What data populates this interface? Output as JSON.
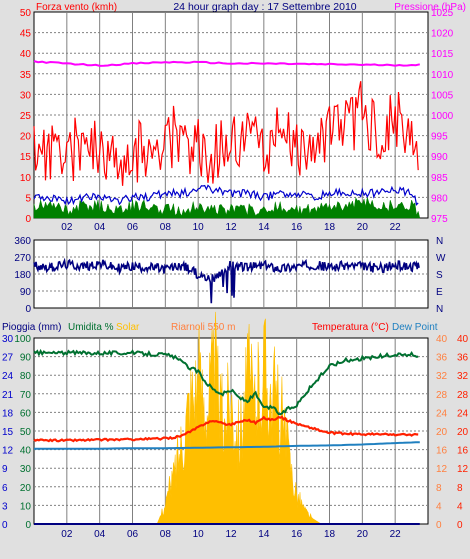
{
  "colors": {
    "background": "#e0e0e0",
    "plot_bg": "#ffffff",
    "wind": "#ff0000",
    "gust": "#0000cc",
    "wind_fill": "#008000",
    "pressure": "#ff00ff",
    "direction": "#000080",
    "rain": "#000080",
    "humidity": "#007030",
    "solar": "#ffbf00",
    "temperature": "#ff2000",
    "dewpoint": "#2080c0",
    "grid": "#808080"
  },
  "chart_data": [
    {
      "id": "wind-pressure",
      "type": "line",
      "title": "24 hour graph day : 17 Settembre 2010",
      "left_label": "Forza vento (kmh)",
      "right_label": "Pressione (hPa)",
      "ylim_left": [
        0,
        50
      ],
      "ylim_right": [
        975,
        1025
      ],
      "left_ticks": [
        "0",
        "5",
        "10",
        "15",
        "20",
        "25",
        "30",
        "35",
        "40",
        "45",
        "50"
      ],
      "right_ticks": [
        "975",
        "980",
        "985",
        "990",
        "995",
        "1000",
        "1005",
        "1010",
        "1015",
        "1020",
        "1025"
      ],
      "x_ticks": [
        "02",
        "04",
        "06",
        "08",
        "10",
        "12",
        "14",
        "16",
        "18",
        "20",
        "22"
      ],
      "xlim": [
        0,
        24
      ],
      "grid": true,
      "series": [
        {
          "key": "gust",
          "x": [
            0,
            1,
            2,
            3,
            4,
            5,
            6,
            7,
            8,
            9,
            10,
            11,
            12,
            13,
            14,
            15,
            16,
            17,
            18,
            19,
            20,
            21,
            22,
            23,
            23.5
          ],
          "values": [
            15,
            16,
            14,
            18,
            17,
            13,
            15,
            16,
            20,
            17,
            18,
            14,
            20,
            18,
            16,
            19,
            15,
            14,
            20,
            22,
            25,
            21,
            23,
            17,
            8
          ]
        },
        {
          "key": "wind_avg",
          "x": [
            0,
            1,
            2,
            3,
            4,
            5,
            6,
            7,
            8,
            9,
            10,
            11,
            12,
            13,
            14,
            15,
            16,
            17,
            18,
            19,
            20,
            21,
            22,
            23,
            23.5
          ],
          "values": [
            5,
            5,
            4,
            5,
            5,
            4,
            5,
            5,
            6,
            6,
            7,
            7,
            6,
            6,
            5,
            6,
            6,
            5,
            6,
            6,
            6,
            6,
            7,
            6,
            3
          ]
        },
        {
          "key": "wind_min",
          "x": [
            0,
            1,
            2,
            3,
            4,
            5,
            6,
            7,
            8,
            9,
            10,
            11,
            12,
            13,
            14,
            15,
            16,
            17,
            18,
            19,
            20,
            21,
            22,
            23,
            23.5
          ],
          "values": [
            3,
            3,
            2,
            3,
            3,
            2,
            3,
            3,
            2,
            2,
            3,
            2,
            2,
            2,
            2,
            3,
            2,
            2,
            3,
            3,
            4,
            3,
            3,
            3,
            1
          ]
        },
        {
          "key": "pressure",
          "x": [
            0,
            2,
            4,
            6,
            8,
            10,
            12,
            14,
            16,
            18,
            20,
            22,
            23.5
          ],
          "values": [
            1013,
            1012.5,
            1012,
            1012.5,
            1012.8,
            1012.8,
            1012.5,
            1012.5,
            1012.4,
            1012.3,
            1012.2,
            1012.1,
            1012.2
          ]
        }
      ]
    },
    {
      "id": "wind-direction",
      "type": "line",
      "left_ticks": [
        "0",
        "90",
        "180",
        "270",
        "360"
      ],
      "right_ticks": [
        "N",
        "W",
        "S",
        "E",
        "N"
      ],
      "ylim": [
        0,
        360
      ],
      "xlim": [
        0,
        24
      ],
      "grid": true,
      "series": [
        {
          "key": "direction",
          "x": [
            0,
            1,
            2,
            3,
            4,
            5,
            6,
            7,
            8,
            9,
            10,
            11,
            12,
            13,
            14,
            15,
            16,
            17,
            18,
            19,
            20,
            21,
            22,
            23,
            23.5
          ],
          "values": [
            225,
            215,
            230,
            220,
            235,
            210,
            220,
            215,
            205,
            225,
            180,
            150,
            230,
            215,
            225,
            210,
            220,
            230,
            215,
            225,
            220,
            210,
            225,
            220,
            215
          ]
        }
      ]
    },
    {
      "id": "rain-temp",
      "type": "line",
      "labels": {
        "rain": "Pioggia (mm)",
        "humidity": "Umidita %",
        "solar": "Solar",
        "solar_flag": "Riarnoli 550 m",
        "temperature": "Temperatura (°C)",
        "dewpoint": "Dew Point"
      },
      "rain_ticks": [
        "0",
        "3",
        "6",
        "9",
        "12",
        "15",
        "18",
        "21",
        "24",
        "27",
        "30"
      ],
      "humidity_ticks": [
        "0",
        "10",
        "20",
        "30",
        "40",
        "50",
        "60",
        "70",
        "80",
        "90",
        "100"
      ],
      "temp_left_ticks": [
        "0",
        "4",
        "8",
        "12",
        "16",
        "20",
        "24",
        "28",
        "32",
        "36",
        "40"
      ],
      "temp_right_ticks": [
        "0",
        "4",
        "8",
        "12",
        "16",
        "20",
        "24",
        "28",
        "32",
        "36",
        "40"
      ],
      "x_ticks": [
        "02",
        "04",
        "06",
        "08",
        "10",
        "12",
        "14",
        "16",
        "18",
        "20",
        "22"
      ],
      "ylim_humidity": [
        0,
        100
      ],
      "ylim_temperature": [
        0,
        40
      ],
      "ylim_solar": [
        0,
        550
      ],
      "xlim": [
        0,
        24
      ],
      "grid": true,
      "series": [
        {
          "key": "humidity",
          "x": [
            0,
            2,
            4,
            6,
            8,
            8.5,
            9,
            9.5,
            10,
            10.5,
            11,
            11.5,
            12,
            12.5,
            13,
            13.5,
            14,
            14.5,
            15,
            15.5,
            16,
            16.5,
            17,
            17.5,
            18,
            19,
            20,
            21,
            22,
            23,
            23.5
          ],
          "values": [
            92,
            92,
            92,
            92,
            91,
            90,
            87,
            84,
            82,
            76,
            72,
            70,
            72,
            68,
            66,
            70,
            62,
            63,
            59,
            62,
            64,
            70,
            75,
            80,
            85,
            88,
            89,
            90,
            91,
            91,
            90
          ]
        },
        {
          "key": "temperature",
          "x": [
            0,
            2,
            4,
            6,
            8,
            8.5,
            9,
            9.5,
            10,
            10.5,
            11,
            11.5,
            12,
            12.5,
            13,
            13.5,
            14,
            14.5,
            15,
            15.5,
            16,
            16.5,
            17,
            17.5,
            18,
            19,
            20,
            21,
            22,
            23,
            23.5
          ],
          "values": [
            18.0,
            18.0,
            18.1,
            18.2,
            18.4,
            18.6,
            19.0,
            19.8,
            20.8,
            21.8,
            22.2,
            21.6,
            21.4,
            22.0,
            22.4,
            21.8,
            22.8,
            22.4,
            23.0,
            22.2,
            21.6,
            21.0,
            20.6,
            20.0,
            19.6,
            19.4,
            19.3,
            19.3,
            19.2,
            19.2,
            19.2
          ]
        },
        {
          "key": "dewpoint",
          "x": [
            0,
            2,
            4,
            6,
            8,
            10,
            12,
            14,
            16,
            18,
            20,
            22,
            23.5
          ],
          "values": [
            16.2,
            16.2,
            16.2,
            16.3,
            16.3,
            16.4,
            16.5,
            16.6,
            16.8,
            16.9,
            17.1,
            17.4,
            17.6
          ]
        },
        {
          "key": "solar",
          "x": [
            0,
            7.5,
            8,
            8.5,
            9,
            9.5,
            10,
            10.5,
            11,
            11.5,
            12,
            12.5,
            13,
            13.5,
            14,
            14.5,
            15,
            15.5,
            16,
            16.5,
            17,
            17.5,
            18,
            23.5
          ],
          "values": [
            0,
            0,
            60,
            140,
            250,
            380,
            420,
            360,
            450,
            300,
            380,
            260,
            430,
            340,
            470,
            390,
            330,
            200,
            90,
            40,
            15,
            0,
            0,
            0
          ]
        },
        {
          "key": "rain",
          "x": [
            0,
            23.5
          ],
          "values": [
            0,
            0
          ]
        }
      ]
    }
  ]
}
